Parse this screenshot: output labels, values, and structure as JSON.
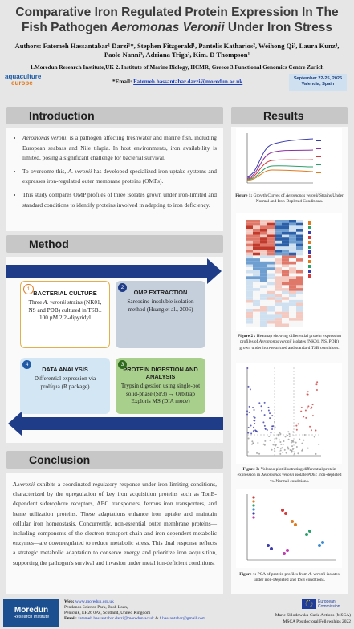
{
  "header": {
    "title_start": "Comparative Iron Regulated Protein Expression In The Fish Pathogen ",
    "title_species": "Aeromonas Veronii",
    "title_end": " Under Iron Stress",
    "authors": "Authors: Fatemeh Hassantabar¹ Darzi¹*, Stephen Fitzgerald¹, Pantelis Katharios², Weihong Qi³, Laura Kunz³, Paolo Nanni³, Adriana Triga², Kim. D Thompson¹",
    "affiliations": "1.Moredun Research Institute,UK 2. Institute of Marine Biology, HCMR, Greece 3.Functional Genomics Centre Zurich",
    "email_label": "*Email: ",
    "email": "Fatemeh.hassantabar.darzi@moredun.ac.uk",
    "logo_line1": "aquaculture",
    "logo_line2": "europe",
    "date": "September 22-25, 2025",
    "place": "Valencia, Spain"
  },
  "introduction": {
    "heading": "Introduction",
    "b1_species": "Aeromonas veronii",
    "b1_text": " is a pathogen affecting freshwater and marine fish, including European seabass and Nile tilapia. In host environments, iron availability is limited, posing a significant challenge for bacterial survival.",
    "b2_start": "To overcome this, ",
    "b2_species": "A. veronii",
    "b2_end": " has developed specialized iron uptake systems and expresses iron-regulated outer membrane proteins (OMPs).",
    "b3": "This study compares OMP profiles of three isolates grown under iron-limited and standard conditions to identify proteins involved in adapting to iron deficiency."
  },
  "method": {
    "heading": "Method",
    "steps": [
      {
        "number": "1",
        "title": "BACTERIAL CULTURE",
        "text_start": "Three ",
        "text_species": "A. veronii",
        "text_end": " strains (NK01, NS and PDB) cultured in TSB± 100 µM 2,2'-dipyridyl"
      },
      {
        "number": "2",
        "title": "OMP EXTRACTION",
        "text": "Sarcosine-insoluble isolation method (Huang et al., 2006)"
      },
      {
        "number": "3",
        "title": "PROTEIN DIGESTION AND ANALYSIS",
        "text": "Trypsin digestion using single-pot solid-phase (SP3) → Orbitrap Exploris MS (DIA mode)"
      },
      {
        "number": "4",
        "title": "DATA ANALYSIS",
        "text": "Differential expression via prolfqua (R package)"
      }
    ]
  },
  "conclusion": {
    "heading": "Conclusion",
    "species": "A.veronii",
    "text": " exhibits a coordinated regulatory response under iron-limiting conditions, characterized by the upregulation of key iron acquisition proteins such as TonB-dependent siderophore receptors, ABC transporters, ferrous iron transporters, and heme utilization proteins. These adaptations enhance iron uptake and maintain cellular iron homeostasis. Concurrently, non-essential outer membrane proteins—including components of the electron transport chain and iron-dependent metabolic enzymes—are downregulated to reduce metabolic stress. This dual response reflects a strategic metabolic adaptation to conserve energy and prioritize iron acquisition, supporting the pathogen's survival and invasion under metal ion-deficient conditions."
  },
  "results": {
    "heading": "Results",
    "figures": [
      {
        "label": "Figure 1:",
        "start": " Growth Curves of ",
        "species": "Aeromonas veronii",
        "end": " Strains Under Normal and Iron-Depleted Conditions."
      },
      {
        "label": "Figure 2 :",
        "start": " Heatmap showing differential protein expression profiles of ",
        "species": "Aeromonas veronii",
        "end": " isolates (NK01, NS, PDB) grown under iron-restricted and standard TSB conditions."
      },
      {
        "label": "Figure 3:",
        "start": " Volcano plot illustrating differential protein expression in ",
        "species": "Aeromonas veronii",
        "end": " isolate PDB: Iron-depleted vs. Normal conditions."
      },
      {
        "label": "Figure 4:",
        "start": " PCA of protein profiles from ",
        "species": "A. veronii",
        "end": " isolates under iron-Depleted and TSB conditions."
      }
    ]
  },
  "footer": {
    "logo_name": "Moredun",
    "logo_sub": "Research Institute",
    "web_label": "Web: ",
    "web": "www.moredun.org.uk",
    "address1": "Pentlands Science Park, Bush Loan,",
    "address2": "Penicuik, EH26 0PZ, Scotland, United Kingdom",
    "email_label": "Email: ",
    "email1": "fatemeh.hassantabar.darzi@moredun.ac.uk",
    "email_sep": " & ",
    "email2": "f.hassantabar@gmail.com",
    "eu": "European Commission",
    "msca": "Marie Skłodowska-Curie Actions (MSCA)",
    "fellowship": "MSCA Postdoctoral Fellowships 2022"
  }
}
